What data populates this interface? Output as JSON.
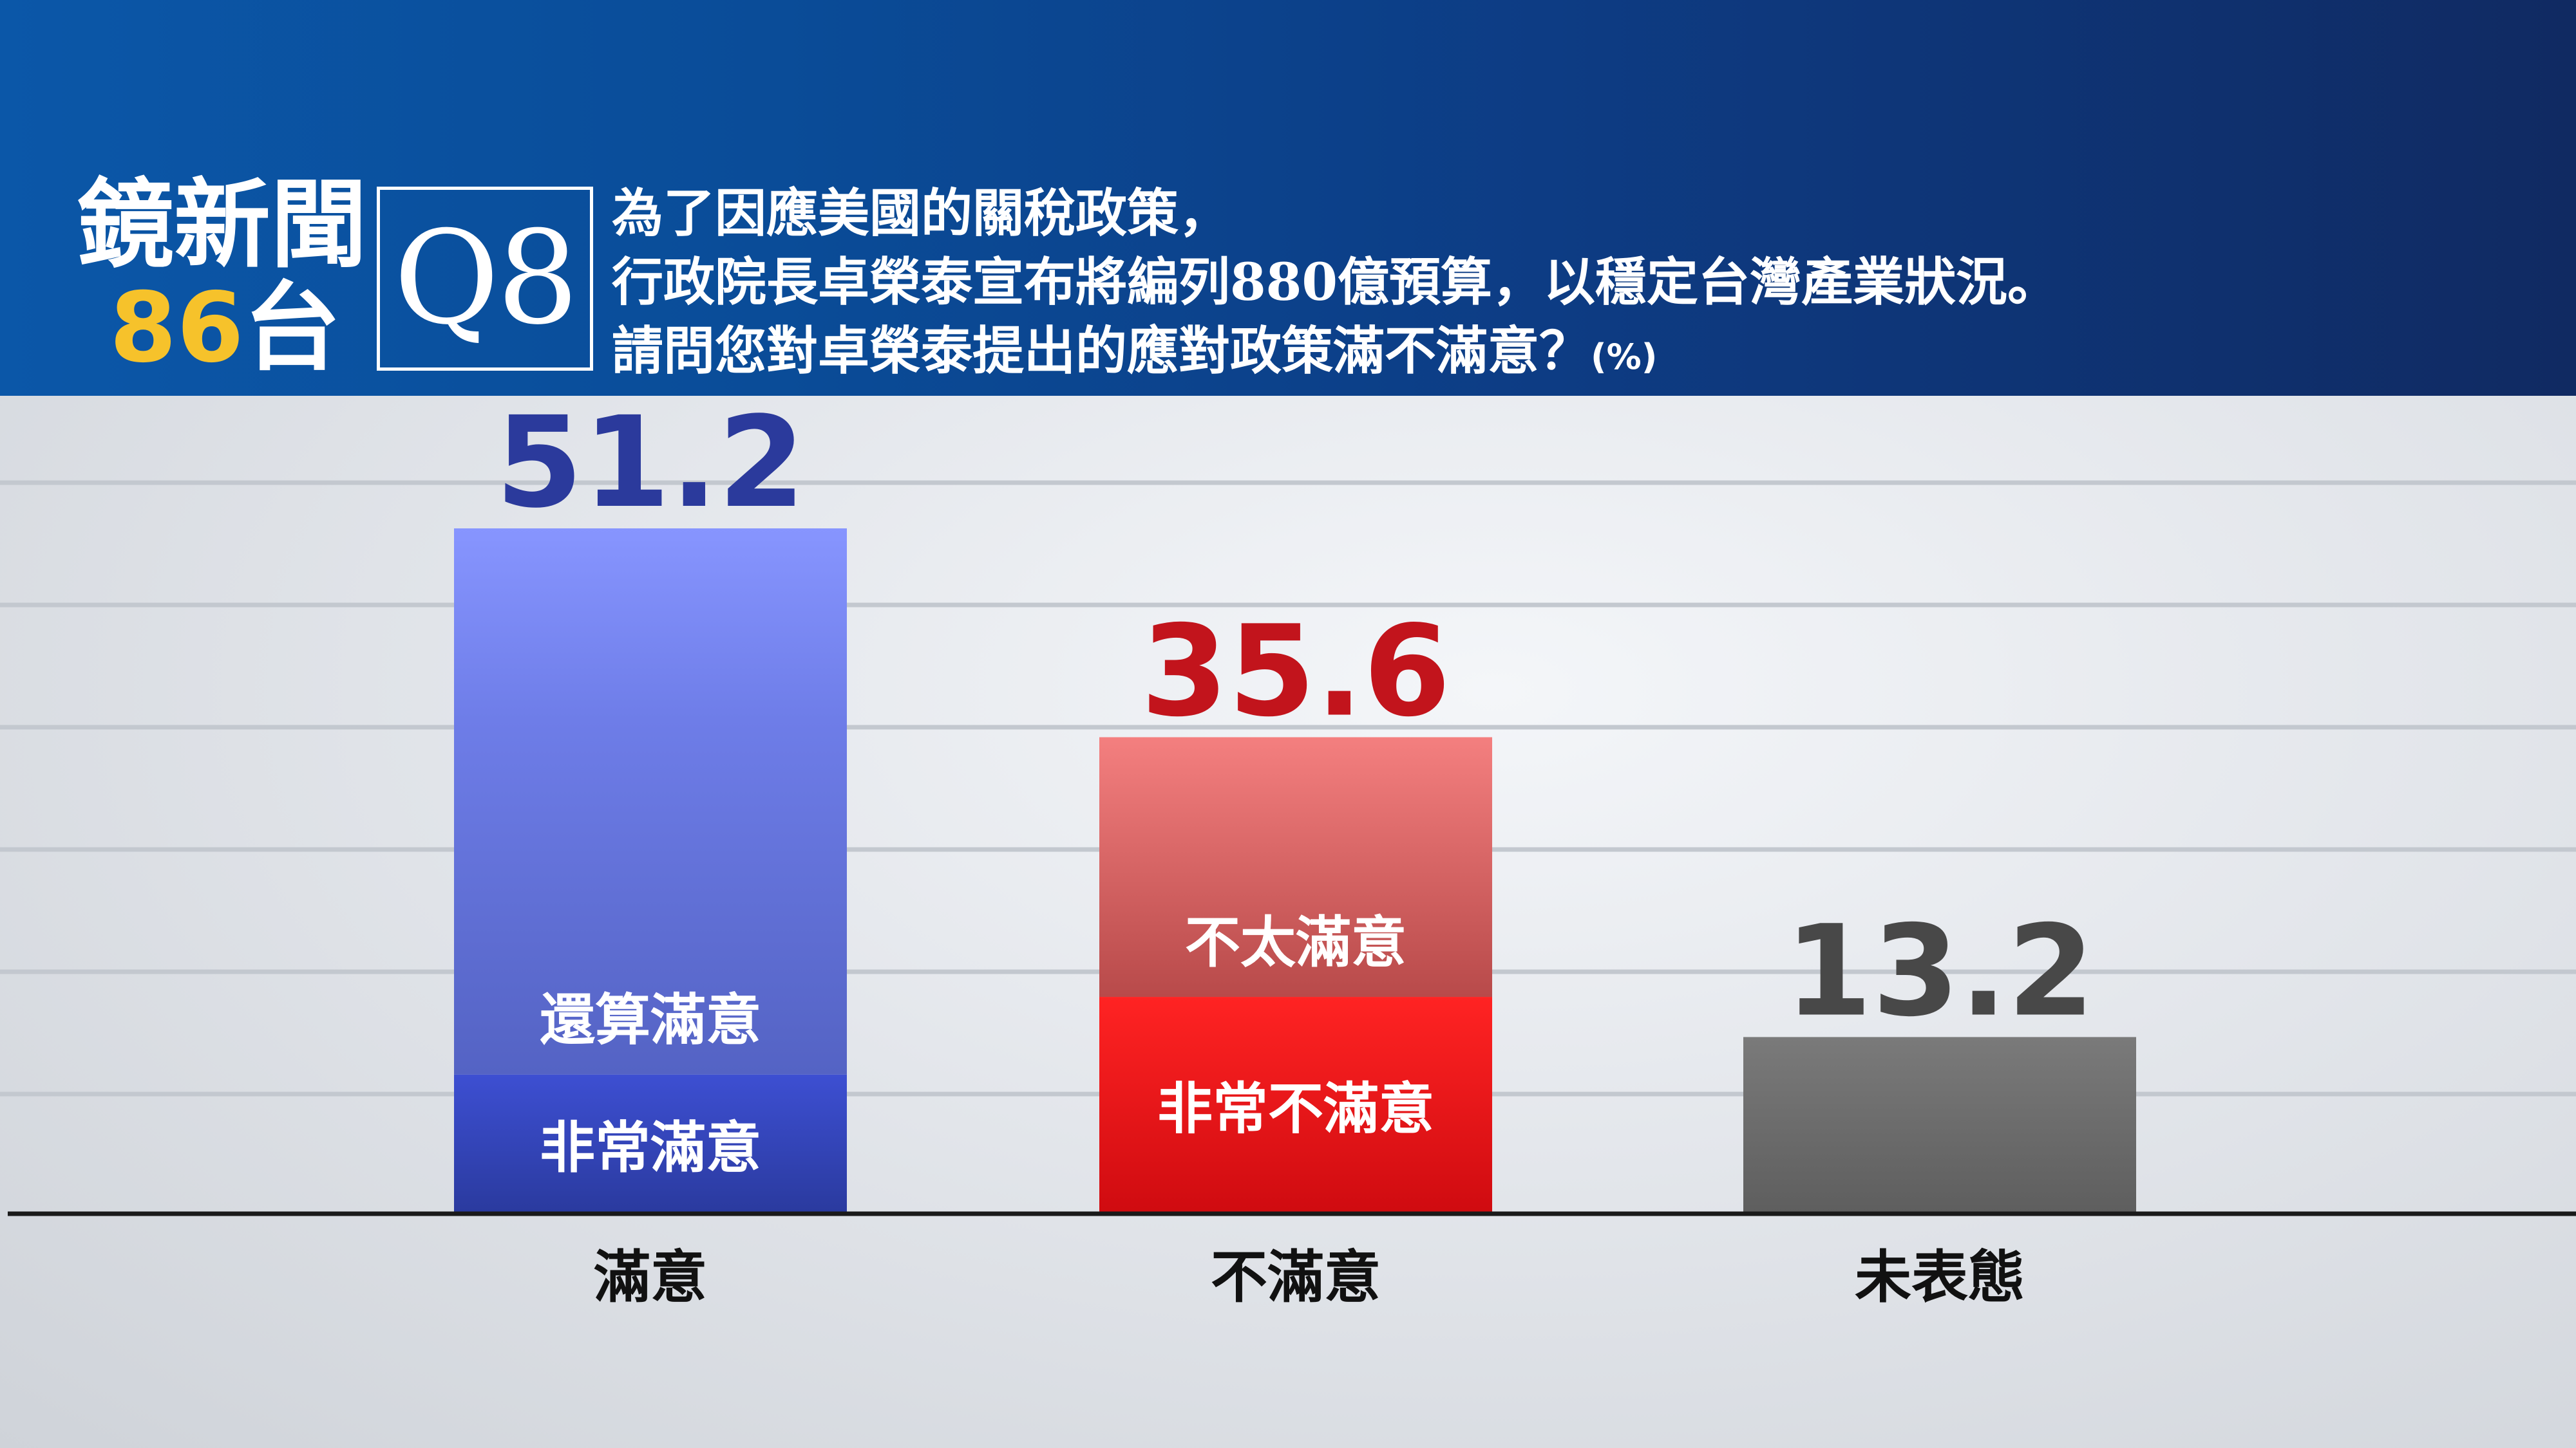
{
  "header": {
    "logo_line1": "鏡新聞",
    "logo_number": "86",
    "logo_suffix": "台",
    "question_id": "Q8",
    "question_lines": [
      "為了因應美國的關稅政策，",
      "行政院長卓榮泰宣布將編列880億預算，以穩定台灣產業狀況。",
      "請問您對卓榮泰提出的應對政策滿不滿意？"
    ],
    "unit": "(%)"
  },
  "colors": {
    "header_left": "#0b57a8",
    "header_right": "#102a62",
    "satisfied_text": "#2b3a9c",
    "satisfied_top": "#8795ff",
    "satisfied_bottom": "#2a3a9e",
    "dissatisfied_text": "#c2141c",
    "dissatisfied_top": "#f08080",
    "dissatisfied_bottom": "#e01016",
    "neutral_text": "#484848",
    "neutral_bar": "#6b6b6b"
  },
  "chart_data": {
    "type": "bar",
    "stacked": true,
    "ylim": [
      0,
      60
    ],
    "grid": true,
    "categories": [
      "滿意",
      "不滿意",
      "未表態"
    ],
    "totals": [
      51.2,
      35.6,
      13.2
    ],
    "total_labels": [
      "51.2",
      "35.6",
      "13.2"
    ],
    "segments": [
      [
        {
          "name": "非常滿意",
          "value": 10.4
        },
        {
          "name": "還算滿意",
          "value": 40.8
        }
      ],
      [
        {
          "name": "非常不滿意",
          "value": 16.2
        },
        {
          "name": "不太滿意",
          "value": 19.4
        }
      ],
      [
        {
          "name": "",
          "value": 13.2
        }
      ]
    ]
  }
}
